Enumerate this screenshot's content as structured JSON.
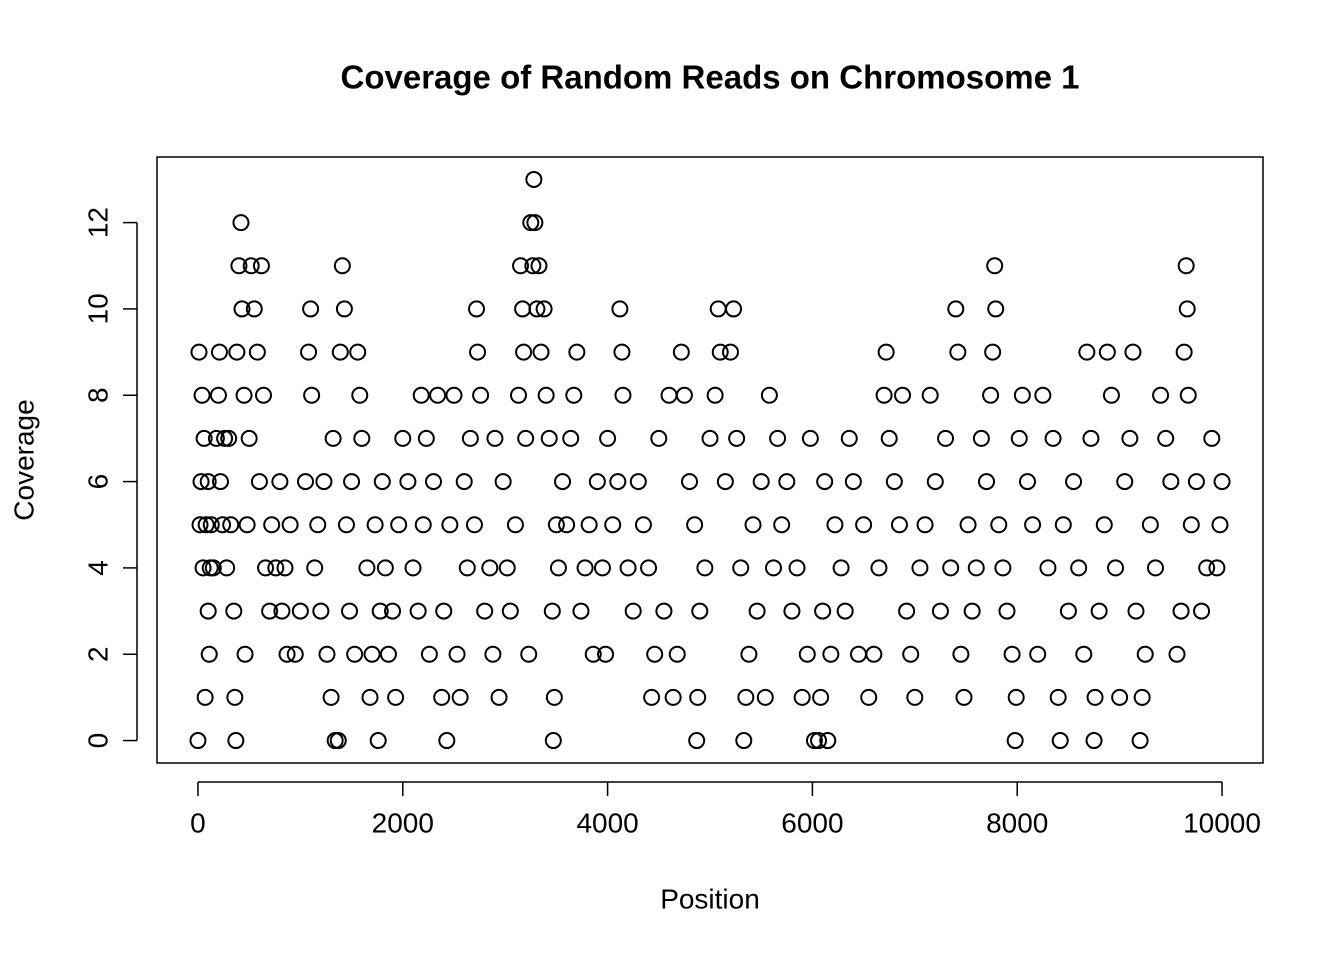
{
  "chart_data": {
    "type": "scatter",
    "title": "Coverage of Random Reads on Chromosome 1",
    "x_label": "Position",
    "y_label": "Coverage",
    "xlim": [
      -400,
      10400
    ],
    "ylim": [
      -0.52,
      13.52
    ],
    "xticks": [
      0,
      2000,
      4000,
      6000,
      8000,
      10000
    ],
    "yticks": [
      0,
      2,
      4,
      6,
      8,
      10,
      12
    ],
    "color": "#000000",
    "x": [
      0,
      10,
      20,
      30,
      40,
      50,
      60,
      70,
      80,
      100,
      100,
      110,
      120,
      130,
      150,
      180,
      200,
      210,
      220,
      240,
      260,
      280,
      300,
      320,
      350,
      360,
      370,
      380,
      400,
      420,
      430,
      450,
      460,
      480,
      500,
      520,
      550,
      580,
      600,
      620,
      640,
      660,
      700,
      720,
      760,
      800,
      820,
      850,
      870,
      900,
      950,
      1000,
      1050,
      1080,
      1100,
      1110,
      1140,
      1170,
      1200,
      1230,
      1260,
      1300,
      1320,
      1340,
      1370,
      1390,
      1410,
      1430,
      1450,
      1480,
      1500,
      1530,
      1560,
      1580,
      1600,
      1650,
      1680,
      1700,
      1730,
      1760,
      1780,
      1800,
      1830,
      1860,
      1900,
      1930,
      1960,
      2000,
      2050,
      2100,
      2150,
      2180,
      2200,
      2230,
      2260,
      2300,
      2340,
      2380,
      2400,
      2430,
      2460,
      2500,
      2530,
      2560,
      2600,
      2630,
      2660,
      2700,
      2720,
      2730,
      2760,
      2800,
      2850,
      2880,
      2900,
      2940,
      2980,
      3020,
      3050,
      3100,
      3130,
      3150,
      3170,
      3180,
      3200,
      3230,
      3250,
      3270,
      3280,
      3290,
      3310,
      3330,
      3350,
      3380,
      3400,
      3430,
      3460,
      3470,
      3480,
      3500,
      3520,
      3560,
      3600,
      3640,
      3670,
      3700,
      3740,
      3780,
      3820,
      3860,
      3900,
      3950,
      3980,
      4000,
      4050,
      4100,
      4120,
      4140,
      4150,
      4200,
      4250,
      4300,
      4350,
      4400,
      4430,
      4460,
      4500,
      4550,
      4600,
      4640,
      4680,
      4720,
      4750,
      4800,
      4850,
      4870,
      4880,
      4900,
      4950,
      5000,
      5050,
      5080,
      5100,
      5150,
      5200,
      5230,
      5260,
      5300,
      5330,
      5350,
      5380,
      5420,
      5460,
      5500,
      5540,
      5580,
      5620,
      5660,
      5700,
      5750,
      5800,
      5850,
      5900,
      5950,
      5980,
      6020,
      6060,
      6080,
      6100,
      6120,
      6150,
      6180,
      6220,
      6280,
      6320,
      6360,
      6400,
      6450,
      6500,
      6550,
      6600,
      6650,
      6700,
      6720,
      6750,
      6800,
      6850,
      6880,
      6920,
      6960,
      7000,
      7050,
      7100,
      7150,
      7200,
      7250,
      7300,
      7350,
      7400,
      7420,
      7450,
      7480,
      7520,
      7560,
      7600,
      7650,
      7700,
      7740,
      7760,
      7780,
      7790,
      7820,
      7860,
      7900,
      7950,
      7980,
      7990,
      8020,
      8050,
      8100,
      8150,
      8200,
      8250,
      8300,
      8350,
      8400,
      8420,
      8450,
      8500,
      8550,
      8600,
      8650,
      8680,
      8720,
      8750,
      8760,
      8800,
      8850,
      8880,
      8920,
      8960,
      9000,
      9050,
      9100,
      9130,
      9160,
      9200,
      9220,
      9250,
      9300,
      9350,
      9400,
      9450,
      9500,
      9560,
      9600,
      9630,
      9650,
      9660,
      9670,
      9700,
      9750,
      9800,
      9850,
      9900,
      9950,
      9980,
      10000
    ],
    "values": [
      0,
      9,
      5,
      6,
      8,
      4,
      7,
      1,
      5,
      6,
      3,
      2,
      4,
      5,
      4,
      7,
      8,
      9,
      6,
      5,
      7,
      4,
      7,
      5,
      3,
      1,
      0,
      9,
      11,
      12,
      10,
      8,
      2,
      5,
      7,
      11,
      10,
      9,
      6,
      11,
      8,
      4,
      3,
      5,
      4,
      6,
      3,
      4,
      2,
      5,
      2,
      3,
      6,
      9,
      10,
      8,
      4,
      5,
      3,
      6,
      2,
      1,
      7,
      0,
      0,
      9,
      11,
      10,
      5,
      3,
      6,
      2,
      9,
      8,
      7,
      4,
      1,
      2,
      5,
      0,
      3,
      6,
      4,
      2,
      3,
      1,
      5,
      7,
      6,
      4,
      3,
      8,
      5,
      7,
      2,
      6,
      8,
      1,
      3,
      0,
      5,
      8,
      2,
      1,
      6,
      4,
      7,
      5,
      10,
      9,
      8,
      3,
      4,
      2,
      7,
      1,
      6,
      4,
      3,
      5,
      8,
      11,
      10,
      9,
      7,
      2,
      12,
      11,
      13,
      12,
      10,
      11,
      9,
      10,
      8,
      7,
      3,
      0,
      1,
      5,
      4,
      6,
      5,
      7,
      8,
      9,
      3,
      4,
      5,
      2,
      6,
      4,
      2,
      7,
      5,
      6,
      10,
      9,
      8,
      4,
      3,
      6,
      5,
      4,
      1,
      2,
      7,
      3,
      8,
      1,
      2,
      9,
      8,
      6,
      5,
      0,
      1,
      3,
      4,
      7,
      8,
      10,
      9,
      6,
      9,
      10,
      7,
      4,
      0,
      1,
      2,
      5,
      3,
      6,
      1,
      8,
      4,
      7,
      5,
      6,
      3,
      4,
      1,
      2,
      7,
      0,
      0,
      1,
      3,
      6,
      0,
      2,
      5,
      4,
      3,
      7,
      6,
      2,
      5,
      1,
      2,
      4,
      8,
      9,
      7,
      6,
      5,
      8,
      3,
      2,
      1,
      4,
      5,
      8,
      6,
      3,
      7,
      4,
      10,
      9,
      2,
      1,
      5,
      3,
      4,
      7,
      6,
      8,
      9,
      11,
      10,
      5,
      4,
      3,
      2,
      0,
      1,
      7,
      8,
      6,
      5,
      2,
      8,
      4,
      7,
      1,
      0,
      5,
      3,
      6,
      4,
      2,
      9,
      7,
      0,
      1,
      3,
      5,
      9,
      8,
      4,
      1,
      6,
      7,
      9,
      3,
      0,
      1,
      2,
      5,
      4,
      8,
      7,
      6,
      2,
      3,
      9,
      11,
      10,
      8,
      5,
      6,
      3,
      4,
      7,
      4,
      5,
      6
    ]
  }
}
